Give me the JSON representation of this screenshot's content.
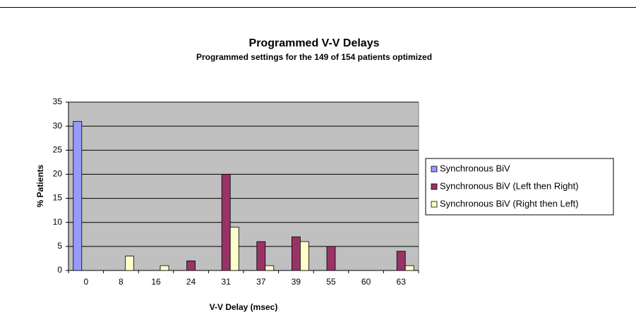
{
  "chart_data": {
    "type": "bar",
    "title": "Programmed V-V Delays",
    "subtitle": "Programmed settings for the 149 of 154 patients optimized",
    "x_label": "V-V Delay (msec)",
    "y_label": "% Patients",
    "categories": [
      0,
      8,
      16,
      24,
      31,
      37,
      39,
      55,
      60,
      63
    ],
    "series": [
      {
        "name": "Synchronous BiV",
        "color": "#9999ff",
        "values": [
          31,
          0,
          0,
          0,
          0,
          0,
          0,
          0,
          0,
          0
        ]
      },
      {
        "name": "Synchronous BiV (Left then Right)",
        "color": "#993366",
        "values": [
          0,
          0,
          0,
          2,
          20,
          6,
          7,
          5,
          0,
          4
        ]
      },
      {
        "name": "Synchronous BiV (Right then Left)",
        "color": "#ffffcc",
        "values": [
          0,
          3,
          1,
          0,
          9,
          1,
          6,
          0,
          0,
          1
        ]
      }
    ],
    "ylim": [
      0,
      35
    ],
    "yticks": [
      0,
      5,
      10,
      15,
      20,
      25,
      30,
      35
    ],
    "grid": true,
    "legend": "right"
  }
}
